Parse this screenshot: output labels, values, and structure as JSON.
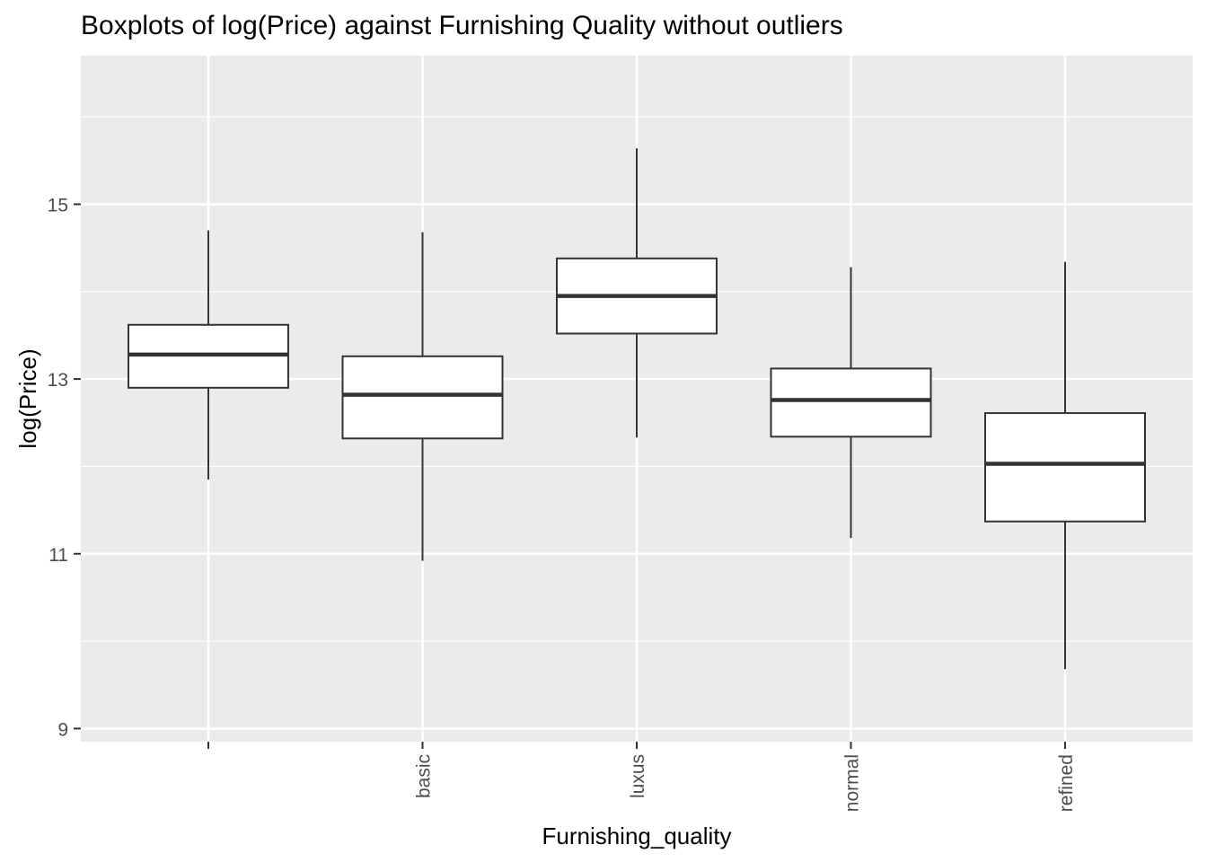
{
  "chart_data": {
    "type": "boxplot",
    "title": "Boxplots of log(Price) against Furnishing Quality without outliers",
    "xlabel": "Furnishing_quality",
    "ylabel": "log(Price)",
    "ylim": [
      8.85,
      16.7
    ],
    "yticks": [
      9,
      11,
      13,
      15
    ],
    "grid": true,
    "legend": "none",
    "categories": [
      "",
      "basic",
      "luxus",
      "normal",
      "refined"
    ],
    "boxes": [
      {
        "category": "",
        "whisker_low": 11.85,
        "q1": 12.9,
        "median": 13.28,
        "q3": 13.62,
        "whisker_high": 14.7
      },
      {
        "category": "basic",
        "whisker_low": 10.92,
        "q1": 12.32,
        "median": 12.82,
        "q3": 13.26,
        "whisker_high": 14.68
      },
      {
        "category": "luxus",
        "whisker_low": 12.33,
        "q1": 13.52,
        "median": 13.95,
        "q3": 14.38,
        "whisker_high": 15.64
      },
      {
        "category": "normal",
        "whisker_low": 11.18,
        "q1": 12.34,
        "median": 12.76,
        "q3": 13.12,
        "whisker_high": 14.28
      },
      {
        "category": "refined",
        "whisker_low": 9.68,
        "q1": 11.37,
        "median": 12.03,
        "q3": 12.61,
        "whisker_high": 14.34
      }
    ],
    "colors": {
      "panel": "#EBEBEB",
      "grid": "#FFFFFF",
      "box_fill": "#FFFFFF",
      "box_stroke": "#333333",
      "axis_text": "#4D4D4D",
      "tick": "#333333"
    }
  }
}
